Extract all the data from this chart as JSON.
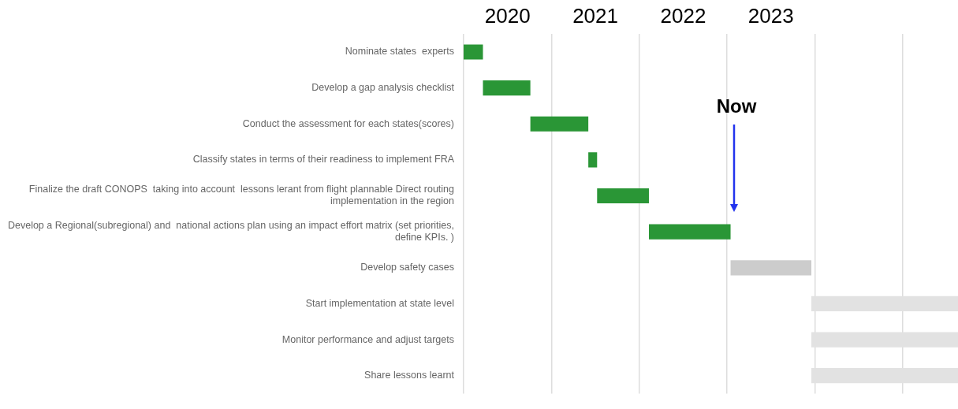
{
  "chart_data": {
    "type": "bar",
    "orientation": "horizontal",
    "categories": [
      "Nominate states  experts",
      "Develop a gap analysis checklist",
      "Conduct the assessment for each states(scores)",
      "Classify states in terms of their readiness to implement FRA",
      "Finalize the draft CONOPS  taking into account  lessons lerant from flight plannable Direct routing implementation in the region",
      "Develop a Regional(subregional) and  national actions plan using an impact effort matrix (set priorities, define KPIs. )",
      "Develop safety cases",
      "Start implementation at state level",
      "Monitor performance and adjust targets",
      "Share lessons learnt"
    ],
    "base": [
      2020,
      2020.22,
      2020.76,
      2021.42,
      2021.52,
      2022.11,
      2023.04,
      2023.96,
      2023.96,
      2023.96
    ],
    "values": [
      0.22,
      0.54,
      0.66,
      0.1,
      0.59,
      0.93,
      0.92,
      1.67,
      1.67,
      1.67
    ],
    "colors": [
      "#2a9636",
      "#2a9636",
      "#2a9636",
      "#2a9636",
      "#2a9636",
      "#2a9636",
      "#cccccc",
      "#e2e2e2",
      "#e2e2e2",
      "#e2e2e2"
    ],
    "xlim": [
      2020,
      2025.63
    ],
    "xticks": [
      {
        "value": 2020,
        "label": null
      },
      {
        "value": 2020.5,
        "label": "2020"
      },
      {
        "value": 2021,
        "label": null
      },
      {
        "value": 2021.5,
        "label": "2021"
      },
      {
        "value": 2022,
        "label": null
      },
      {
        "value": 2022.5,
        "label": "2022"
      },
      {
        "value": 2023,
        "label": null
      },
      {
        "value": 2023.5,
        "label": "2023"
      },
      {
        "value": 2024,
        "label": null
      },
      {
        "value": 2025,
        "label": null
      }
    ],
    "grid": "x",
    "legend": false,
    "ref_lines": [
      {
        "axis": "x",
        "value": 2023.08,
        "label": "Now",
        "color": "#2233ee"
      }
    ]
  }
}
